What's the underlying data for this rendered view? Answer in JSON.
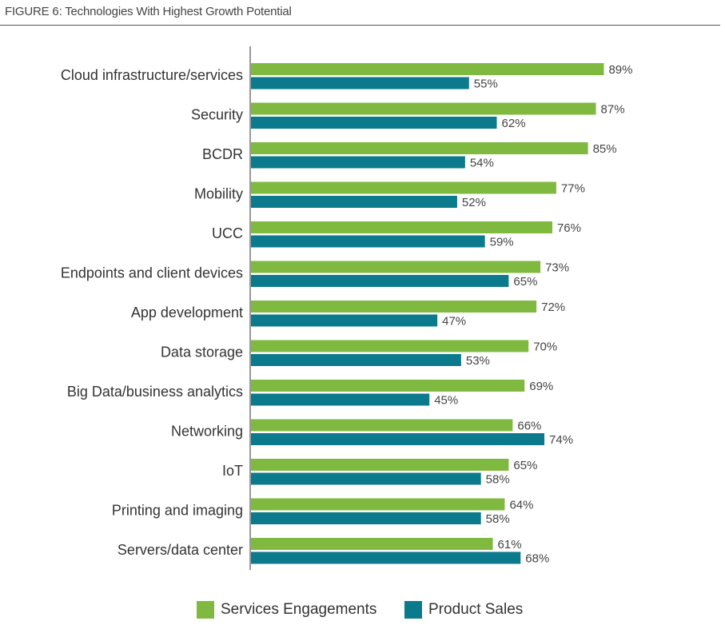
{
  "figure_title": "FIGURE 6: Technologies With Highest Growth Potential",
  "colors": {
    "services": "#80b940",
    "product": "#0b7a8c",
    "axis": "#333333"
  },
  "chart_data": {
    "type": "bar",
    "orientation": "horizontal",
    "title": "FIGURE 6: Technologies With Highest Growth Potential",
    "xlim": [
      0,
      100
    ],
    "grid": false,
    "legend_position": "bottom",
    "categories": [
      "Cloud infrastructure/services",
      "Security",
      "BCDR",
      "Mobility",
      "UCC",
      "Endpoints and client devices",
      "App development",
      "Data storage",
      "Big Data/business analytics",
      "Networking",
      "IoT",
      "Printing and imaging",
      "Servers/data center"
    ],
    "series": [
      {
        "name": "Services Engagements",
        "color": "#80b940",
        "values": [
          89,
          87,
          85,
          77,
          76,
          73,
          72,
          70,
          69,
          66,
          65,
          64,
          61
        ],
        "labels": [
          "89%",
          "87%",
          "85%",
          "77%",
          "76%",
          "73%",
          "72%",
          "70%",
          "69%",
          "66%",
          "65%",
          "64%",
          "61%"
        ]
      },
      {
        "name": "Product Sales",
        "color": "#0b7a8c",
        "values": [
          55,
          62,
          54,
          52,
          59,
          65,
          47,
          53,
          45,
          74,
          58,
          58,
          68
        ],
        "labels": [
          "55%",
          "62%",
          "54%",
          "52%",
          "59%",
          "65%",
          "47%",
          "53%",
          "45%",
          "74%",
          "58%",
          "58%",
          "68%"
        ]
      }
    ]
  }
}
